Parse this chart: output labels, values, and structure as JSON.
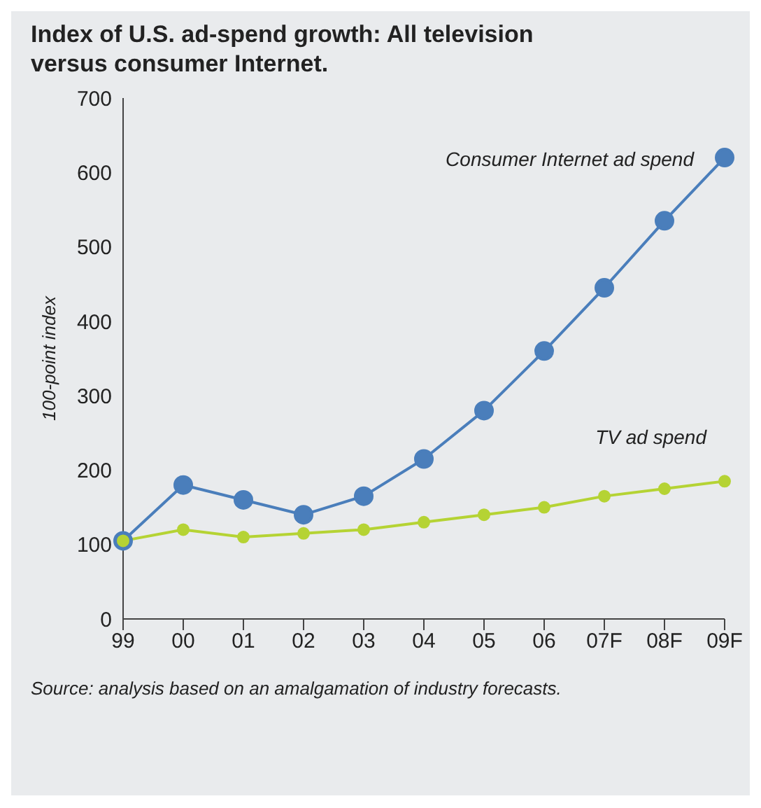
{
  "chart_data": {
    "type": "line",
    "title": "Index of U.S. ad-spend growth: All television versus consumer Internet.",
    "ylabel": "100-point index",
    "categories": [
      "99",
      "00",
      "01",
      "02",
      "03",
      "04",
      "05",
      "06",
      "07F",
      "08F",
      "09F"
    ],
    "series": [
      {
        "name": "Consumer Internet ad spend",
        "color": "#4a7ebb",
        "values": [
          105,
          180,
          160,
          140,
          165,
          215,
          280,
          360,
          445,
          535,
          620
        ]
      },
      {
        "name": "TV ad spend",
        "color": "#b5d334",
        "values": [
          105,
          120,
          110,
          115,
          120,
          130,
          140,
          150,
          165,
          175,
          185
        ]
      }
    ],
    "ylim": [
      0,
      700
    ],
    "yticks": [
      0,
      100,
      200,
      300,
      400,
      500,
      600,
      700
    ],
    "grid": false,
    "legend": false,
    "marker": "circle",
    "line_style": "solid",
    "annotations": [
      "Source: analysis based on an amalgamation of industry forecasts."
    ]
  }
}
